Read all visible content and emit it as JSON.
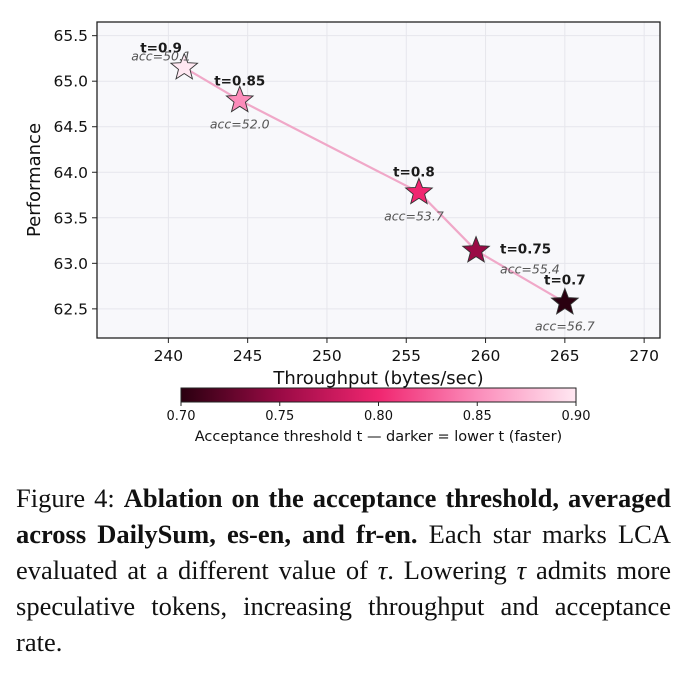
{
  "chart_data": {
    "type": "scatter",
    "xlabel": "Throughput (bytes/sec)",
    "ylabel": "Performance",
    "xlim": [
      235.5,
      271
    ],
    "ylim": [
      62.18,
      65.65
    ],
    "x_ticks": [
      "240",
      "245",
      "250",
      "255",
      "260",
      "265",
      "270"
    ],
    "y_ticks": [
      "62.5",
      "63.0",
      "63.5",
      "64.0",
      "64.5",
      "65.0",
      "65.5"
    ],
    "grid": true,
    "connecting_line": true,
    "marker": "star",
    "line_color": "#f0a8c8",
    "points": [
      {
        "x": 241.0,
        "y": 65.15,
        "t": 0.9,
        "label": "t=0.9",
        "acc": "acc=50.1"
      },
      {
        "x": 244.5,
        "y": 64.79,
        "t": 0.85,
        "label": "t=0.85",
        "acc": "acc=52.0"
      },
      {
        "x": 255.8,
        "y": 63.78,
        "t": 0.8,
        "label": "t=0.8",
        "acc": "acc=53.7"
      },
      {
        "x": 259.4,
        "y": 63.14,
        "t": 0.75,
        "label": "t=0.75",
        "acc": "acc=55.4"
      },
      {
        "x": 265.0,
        "y": 62.57,
        "t": 0.7,
        "label": "t=0.7",
        "acc": "acc=56.7"
      }
    ],
    "colorbar": {
      "label": "Acceptance threshold t — darker = lower t (faster)",
      "range": [
        0.7,
        0.9
      ],
      "ticks": [
        "0.70",
        "0.75",
        "0.80",
        "0.85",
        "0.90"
      ],
      "colors": [
        "#2a0010",
        "#9a0a45",
        "#f02670",
        "#fb8cba",
        "#ffe8f2"
      ]
    }
  },
  "caption": {
    "prefix": "Figure 4:",
    "title": "Ablation on the acceptance threshold, averaged across DailySum, es-en, and fr-en.",
    "body1": "Each star marks LCA evaluated at a different value of",
    "symbol": "τ",
    "body2": ". Lowering",
    "body3": "admits more speculative tokens, increasing throughput and acceptance rate."
  }
}
